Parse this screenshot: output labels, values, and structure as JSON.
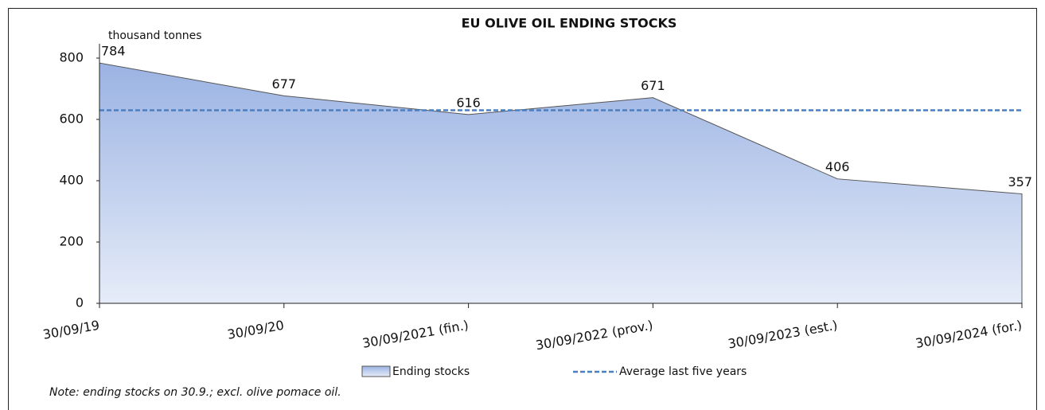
{
  "chart_data": {
    "type": "area",
    "title": "EU OLIVE OIL ENDING STOCKS",
    "y_label": "thousand tonnes",
    "note": "Note: ending stocks on 30.9.; excl. olive pomace oil.",
    "categories": [
      "30/09/19",
      "30/09/20",
      "30/09/2021 (fin.)",
      "30/09/2022 (prov.)",
      "30/09/2023 (est.)",
      "30/09/2024 (for.)"
    ],
    "series": [
      {
        "name": "Ending stocks",
        "color": "#9bb3e3",
        "values": [
          784,
          677,
          616,
          671,
          406,
          357
        ]
      },
      {
        "name": "Average last five years",
        "color": "#4a7fc1",
        "values": [
          630,
          630,
          630,
          630,
          630,
          630
        ]
      }
    ],
    "ylim": [
      0,
      800
    ],
    "yticks": [
      0,
      200,
      400,
      600,
      800
    ]
  }
}
